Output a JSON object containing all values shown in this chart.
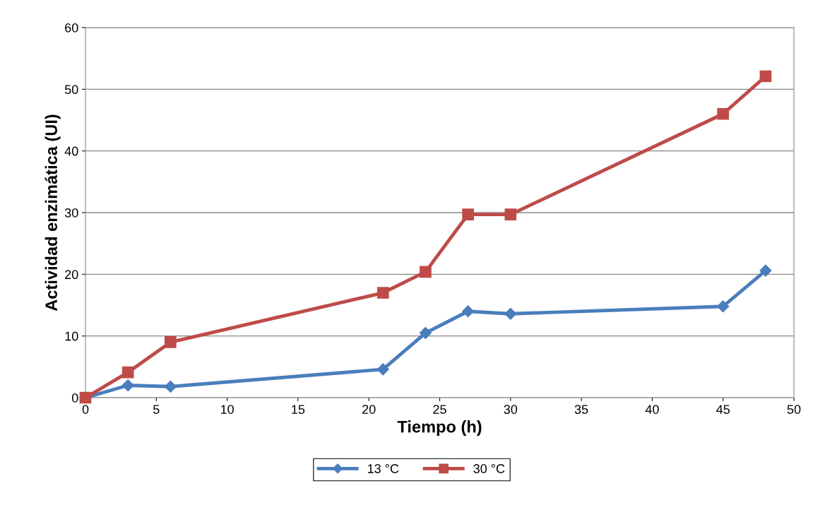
{
  "chart_data": {
    "type": "line",
    "xlabel": "Tiempo (h)",
    "ylabel": "Actividad enzimática (UI)",
    "xlim": [
      0,
      50
    ],
    "xticks": [
      0,
      5,
      10,
      15,
      20,
      25,
      30,
      35,
      40,
      45,
      50
    ],
    "ylim": [
      0,
      60
    ],
    "yticks": [
      0,
      10,
      20,
      30,
      40,
      50,
      60
    ],
    "grid": "y",
    "legend": "bottom",
    "line_style": "solid",
    "series": [
      {
        "name": "13 °C",
        "color": "#4a7ebb",
        "marker": "diamond",
        "x": [
          0,
          3,
          6,
          21,
          24,
          27,
          30,
          45,
          48
        ],
        "values": [
          0,
          2.0,
          1.8,
          4.6,
          10.5,
          14.0,
          13.6,
          14.8,
          20.6
        ]
      },
      {
        "name": "30 °C",
        "color": "#be4b48",
        "marker": "square",
        "x": [
          0,
          3,
          6,
          21,
          24,
          27,
          30,
          45,
          48
        ],
        "values": [
          0,
          4.1,
          9.0,
          17.0,
          20.4,
          29.7,
          29.7,
          46.0,
          52.1
        ]
      }
    ]
  }
}
